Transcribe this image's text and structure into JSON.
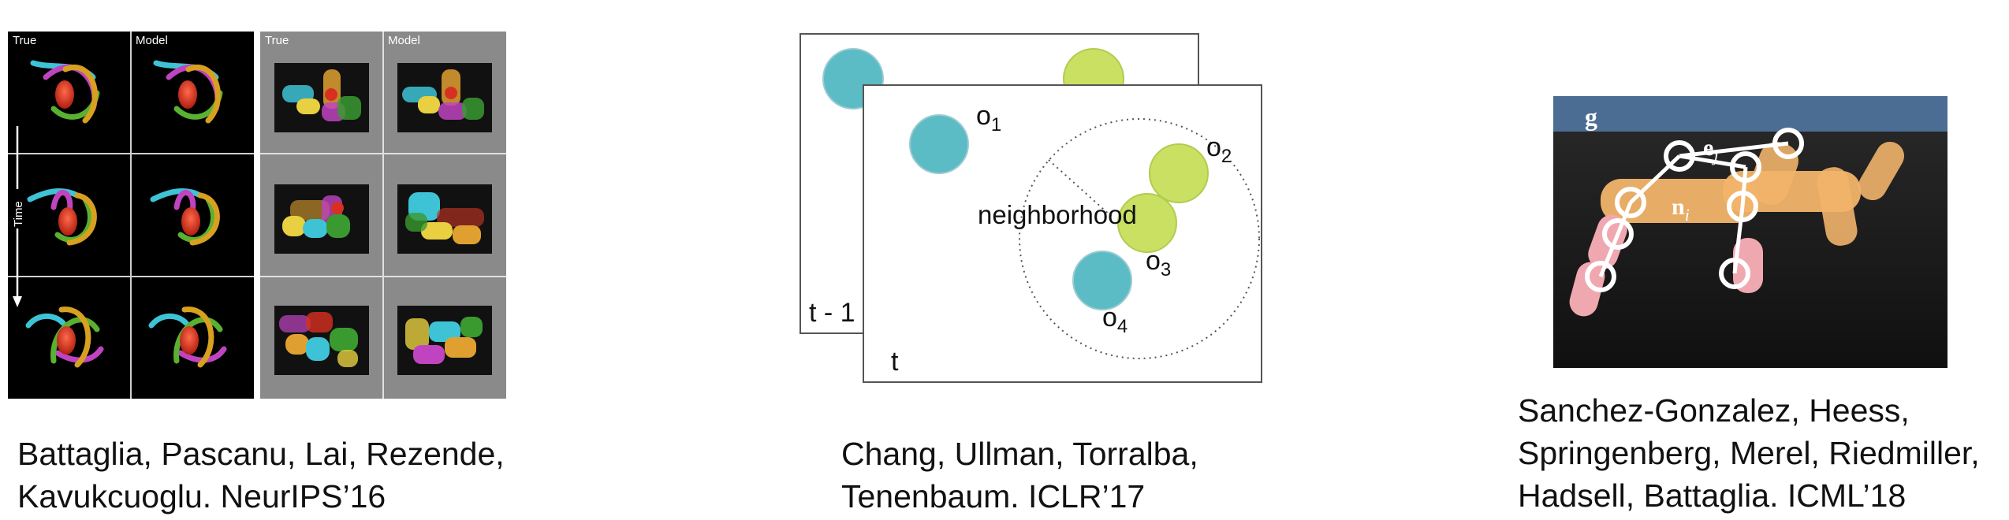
{
  "panel1": {
    "header_true_left": "True",
    "header_model_left": "Model",
    "header_true_right": "True",
    "header_model_right": "Model",
    "time_label": "Time"
  },
  "panel2": {
    "frame_back_label": "t - 1",
    "frame_front_label": "t",
    "neighborhood_label": "neighborhood",
    "objects": [
      {
        "base": "o",
        "sub": "1"
      },
      {
        "base": "o",
        "sub": "2"
      },
      {
        "base": "o",
        "sub": "3"
      },
      {
        "base": "o",
        "sub": "4"
      }
    ],
    "colors": {
      "teal": "#5bbcc6",
      "lime": "#c9e063"
    }
  },
  "panel3": {
    "global_label": "g",
    "edge_label": {
      "base": "e",
      "sub": "j"
    },
    "node_label": {
      "base": "n",
      "sub": "i"
    },
    "colors": {
      "header": "#4c6d93",
      "body": "#f2b46a",
      "legs": "#f0a8b0"
    }
  },
  "captions": [
    {
      "lines": [
        "Battaglia, Pascanu, Lai, Rezende,",
        "Kavukcuoglu. NeurIPS’16"
      ]
    },
    {
      "lines": [
        "Chang, Ullman, Torralba,",
        "Tenenbaum. ICLR’17"
      ]
    },
    {
      "lines": [
        "Sanchez-Gonzalez, Heess,",
        "Springenberg, Merel, Riedmiller,",
        "Hadsell, Battaglia. ICML’18"
      ]
    }
  ]
}
